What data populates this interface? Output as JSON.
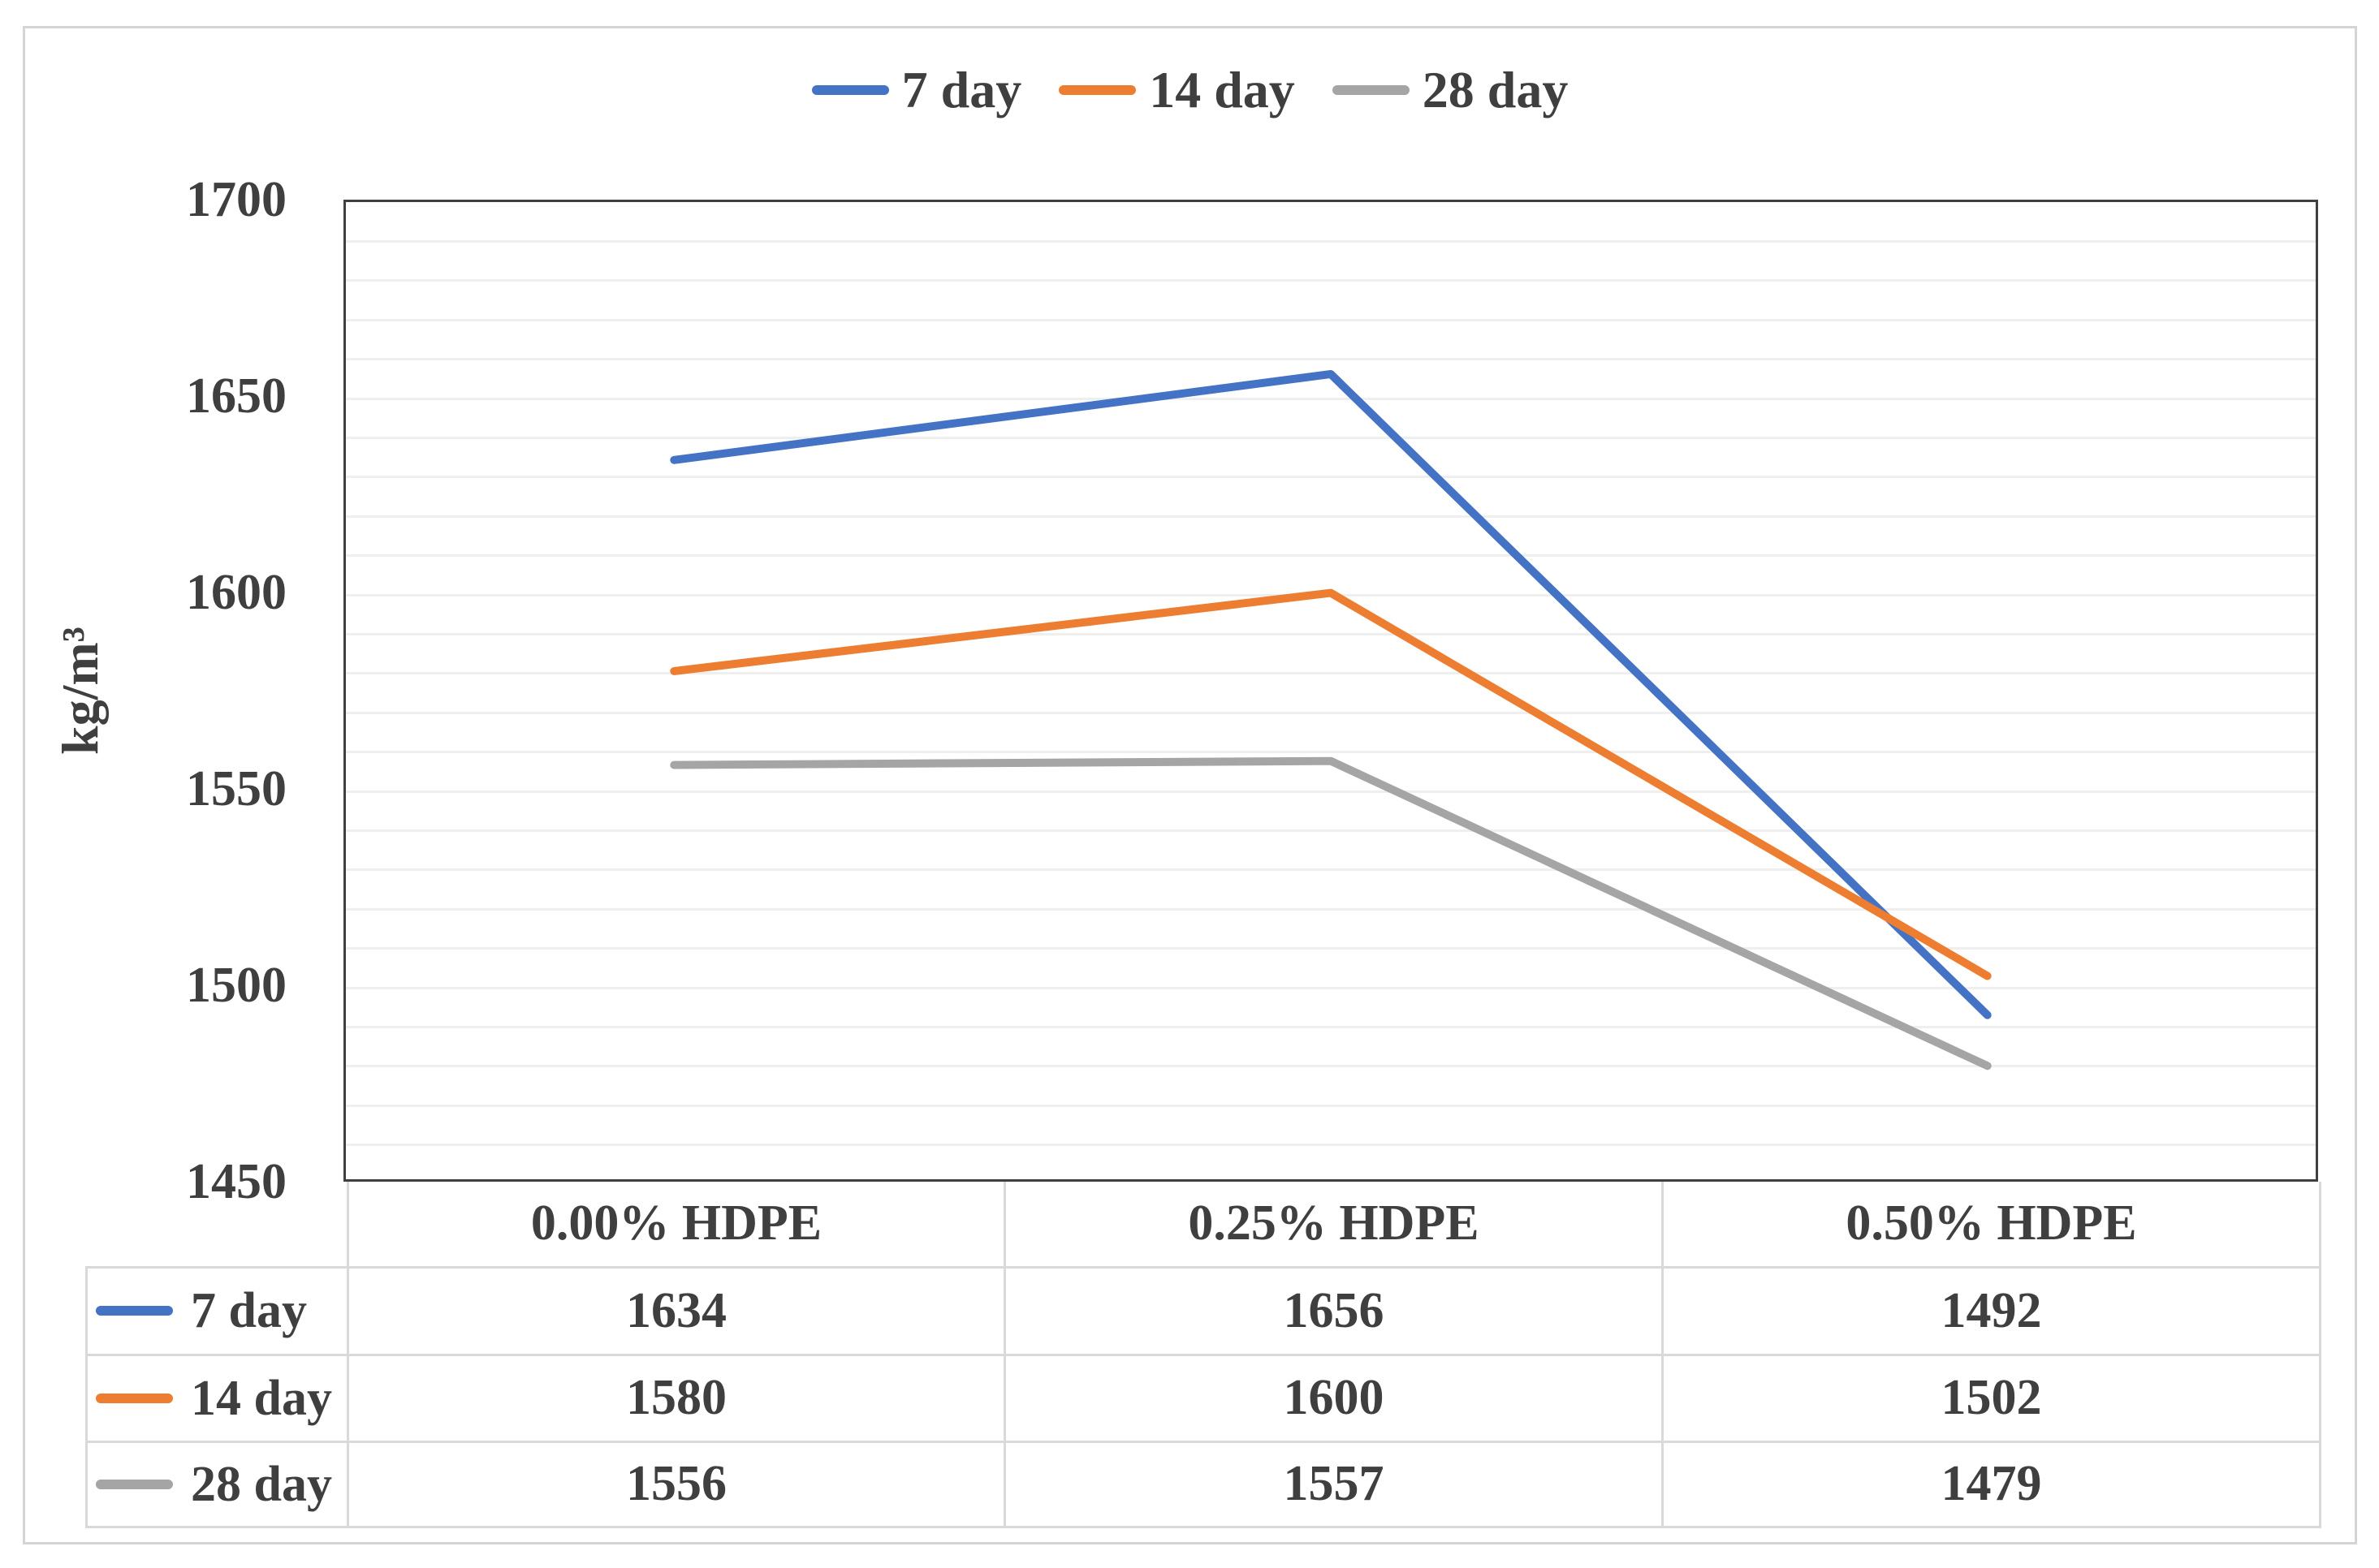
{
  "chart_data": {
    "type": "line",
    "categories": [
      "0.00% HDPE",
      "0.25% HDPE",
      "0.50% HDPE"
    ],
    "series": [
      {
        "name": "7 day",
        "color": "#4472C4",
        "values": [
          1634,
          1656,
          1492
        ]
      },
      {
        "name": "14 day",
        "color": "#ED7D31",
        "values": [
          1580,
          1600,
          1502
        ]
      },
      {
        "name": "28 day",
        "color": "#A5A5A5",
        "values": [
          1556,
          1557,
          1479
        ]
      }
    ],
    "title": "",
    "xlabel": "",
    "ylabel": "kg/m³",
    "ylim": [
      1450,
      1700
    ],
    "ytick_step": 50,
    "minor_gridline_step": 10,
    "legend_position": "top",
    "grid": true,
    "data_table_shown": true
  },
  "colors": {
    "text": "#3f3f3f",
    "plot_border": "#404040",
    "gridline": "#efefef",
    "table_border": "#d9d9d9",
    "figure_border": "#d5d5d5",
    "background": "#ffffff"
  }
}
